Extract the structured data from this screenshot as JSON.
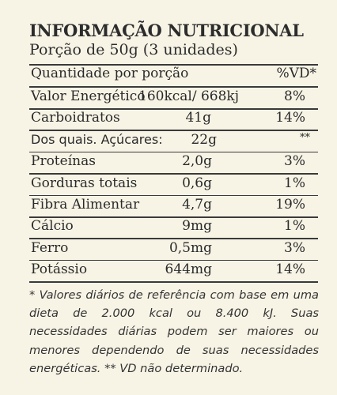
{
  "header": {
    "title": "INFORMAÇÃO NUTRICIONAL",
    "portion": "Porção de 50g (3 unidades)"
  },
  "table": {
    "col_quantity": "Quantidade por porção",
    "col_vd": "%VD*",
    "rows": [
      {
        "name": "Valor Energético",
        "amount": "160kcal/ 668kj",
        "vd": "8%"
      },
      {
        "name": "Carboidratos",
        "amount": "41g",
        "vd": "14%"
      },
      {
        "name": "Dos quais. Açúcares:",
        "amount": "22g",
        "vd": "**"
      },
      {
        "name": "Proteínas",
        "amount": "2,0g",
        "vd": "3%"
      },
      {
        "name": "Gorduras totais",
        "amount": "0,6g",
        "vd": "1%"
      },
      {
        "name": "Fibra Alimentar",
        "amount": "4,7g",
        "vd": "19%"
      },
      {
        "name": "Cálcio",
        "amount": "9mg",
        "vd": "1%"
      },
      {
        "name": "Ferro",
        "amount": "0,5mg",
        "vd": "3%"
      },
      {
        "name": "Potássio",
        "amount": "644mg",
        "vd": "14%"
      }
    ]
  },
  "footnote": "* Valores diários de referência com base em uma dieta de 2.000 kcal ou 8.400 kJ. Suas necessidades diárias podem ser maiores ou menores dependendo de suas necessidades energéticas. ** VD não determinado."
}
